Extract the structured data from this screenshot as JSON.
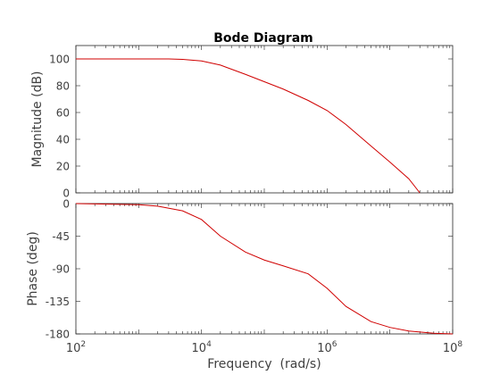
{
  "chart_data": {
    "type": "line",
    "title": "Bode Diagram",
    "xlabel": "Frequency  (rad/s)",
    "xscale": "log",
    "xlim": [
      100,
      100000000
    ],
    "xticks": [
      {
        "base": "10",
        "exp": "2"
      },
      {
        "base": "10",
        "exp": "4"
      },
      {
        "base": "10",
        "exp": "6"
      },
      {
        "base": "10",
        "exp": "8"
      }
    ],
    "line_color": "#d00000",
    "magnitude": {
      "ylabel": "Magnitude (dB)",
      "ylim": [
        0,
        110
      ],
      "yticks": [
        "0",
        "20",
        "40",
        "60",
        "80",
        "100"
      ],
      "x": [
        100,
        1000,
        3000,
        5000,
        10000,
        20000,
        50000,
        100000,
        200000,
        500000,
        1000000,
        2000000,
        5000000,
        10000000,
        20000000,
        30000000
      ],
      "values": [
        100,
        100,
        100,
        99.7,
        98.5,
        95.4,
        88.5,
        83,
        77.5,
        69,
        61.5,
        51,
        35,
        23,
        10.5,
        0
      ]
    },
    "phase": {
      "ylabel": "Phase (deg)",
      "ylim": [
        -180,
        0
      ],
      "yticks": [
        "0",
        "-45",
        "-90",
        "-135",
        "-180"
      ],
      "x": [
        100,
        1000,
        2000,
        5000,
        10000,
        20000,
        50000,
        100000,
        200000,
        500000,
        1000000,
        2000000,
        5000000,
        10000000,
        20000000,
        50000000,
        100000000
      ],
      "values": [
        0,
        -1.5,
        -3.5,
        -10,
        -22,
        -45,
        -67,
        -78,
        -86,
        -97,
        -117,
        -142,
        -163,
        -171,
        -176,
        -179,
        -180
      ]
    }
  }
}
